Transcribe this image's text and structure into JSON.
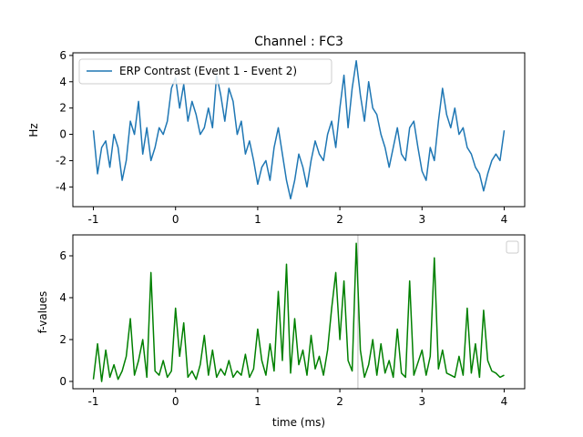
{
  "chart_data": [
    {
      "type": "line",
      "title": "Channel : FC3",
      "xlabel": "",
      "ylabel": "Hz",
      "xlim": [
        -1.25,
        4.25
      ],
      "ylim": [
        -5.5,
        6.2
      ],
      "xticks": [
        "-1",
        "0",
        "1",
        "2",
        "3",
        "4"
      ],
      "yticks": [
        "-4",
        "-2",
        "0",
        "2",
        "4",
        "6"
      ],
      "grid": false,
      "legend": "upper-left",
      "series": [
        {
          "name": "ERP Contrast (Event 1 - Event 2)",
          "color": "#1f77b4",
          "x": [
            -1.0,
            -0.95,
            -0.9,
            -0.85,
            -0.8,
            -0.75,
            -0.7,
            -0.65,
            -0.6,
            -0.55,
            -0.5,
            -0.45,
            -0.4,
            -0.35,
            -0.3,
            -0.25,
            -0.2,
            -0.15,
            -0.1,
            -0.05,
            0.0,
            0.05,
            0.1,
            0.15,
            0.2,
            0.25,
            0.3,
            0.35,
            0.4,
            0.45,
            0.5,
            0.55,
            0.6,
            0.65,
            0.7,
            0.75,
            0.8,
            0.85,
            0.9,
            0.95,
            1.0,
            1.05,
            1.1,
            1.15,
            1.2,
            1.25,
            1.3,
            1.35,
            1.4,
            1.45,
            1.5,
            1.55,
            1.6,
            1.65,
            1.7,
            1.75,
            1.8,
            1.85,
            1.9,
            1.95,
            2.0,
            2.05,
            2.1,
            2.15,
            2.2,
            2.25,
            2.3,
            2.35,
            2.4,
            2.45,
            2.5,
            2.55,
            2.6,
            2.65,
            2.7,
            2.75,
            2.8,
            2.85,
            2.9,
            2.95,
            3.0,
            3.05,
            3.1,
            3.15,
            3.2,
            3.25,
            3.3,
            3.35,
            3.4,
            3.45,
            3.5,
            3.55,
            3.6,
            3.65,
            3.7,
            3.75,
            3.8,
            3.85,
            3.9,
            3.95,
            4.0
          ],
          "y": [
            0.3,
            -3.0,
            -1.0,
            -0.5,
            -2.5,
            0.0,
            -1.0,
            -3.5,
            -2.0,
            1.0,
            0.0,
            2.5,
            -1.5,
            0.5,
            -2.0,
            -1.0,
            0.5,
            0.0,
            1.0,
            3.5,
            4.3,
            2.0,
            3.8,
            1.0,
            2.5,
            1.5,
            0.0,
            0.5,
            2.0,
            0.5,
            4.5,
            3.0,
            1.0,
            3.5,
            2.5,
            0.0,
            1.0,
            -1.5,
            -0.5,
            -2.0,
            -3.8,
            -2.5,
            -2.0,
            -3.5,
            -1.0,
            0.5,
            -1.5,
            -3.5,
            -4.9,
            -3.5,
            -1.5,
            -2.5,
            -4.0,
            -2.0,
            -0.5,
            -1.5,
            -2.0,
            0.0,
            1.0,
            -1.0,
            2.0,
            4.5,
            0.5,
            3.5,
            5.6,
            3.0,
            1.0,
            4.0,
            2.0,
            1.5,
            0.0,
            -1.0,
            -2.5,
            -1.0,
            0.5,
            -1.5,
            -2.0,
            0.5,
            1.0,
            -1.0,
            -2.8,
            -3.5,
            -1.0,
            -2.0,
            1.0,
            3.5,
            1.5,
            0.5,
            2.0,
            0.0,
            0.5,
            -1.0,
            -1.5,
            -2.5,
            -3.0,
            -4.3,
            -3.0,
            -2.0,
            -1.5,
            -2.0,
            0.3
          ]
        }
      ]
    },
    {
      "type": "line",
      "title": "",
      "xlabel": "time (ms)",
      "ylabel": "f-values",
      "xlim": [
        -1.25,
        4.25
      ],
      "ylim": [
        -0.35,
        7.0
      ],
      "xticks": [
        "-1",
        "0",
        "1",
        "2",
        "3",
        "4"
      ],
      "yticks": [
        "0",
        "2",
        "4",
        "6"
      ],
      "grid": false,
      "legend": "upper-right",
      "vline_x": 2.22,
      "series": [
        {
          "color": "#008000",
          "x": [
            -1.0,
            -0.95,
            -0.9,
            -0.85,
            -0.8,
            -0.75,
            -0.7,
            -0.65,
            -0.6,
            -0.55,
            -0.5,
            -0.45,
            -0.4,
            -0.35,
            -0.3,
            -0.25,
            -0.2,
            -0.15,
            -0.1,
            -0.05,
            0.0,
            0.05,
            0.1,
            0.15,
            0.2,
            0.25,
            0.3,
            0.35,
            0.4,
            0.45,
            0.5,
            0.55,
            0.6,
            0.65,
            0.7,
            0.75,
            0.8,
            0.85,
            0.9,
            0.95,
            1.0,
            1.05,
            1.1,
            1.15,
            1.2,
            1.25,
            1.3,
            1.35,
            1.4,
            1.45,
            1.5,
            1.55,
            1.6,
            1.65,
            1.7,
            1.75,
            1.8,
            1.85,
            1.9,
            1.95,
            2.0,
            2.05,
            2.1,
            2.15,
            2.2,
            2.25,
            2.3,
            2.35,
            2.4,
            2.45,
            2.5,
            2.55,
            2.6,
            2.65,
            2.7,
            2.75,
            2.8,
            2.85,
            2.9,
            2.95,
            3.0,
            3.05,
            3.1,
            3.15,
            3.2,
            3.25,
            3.3,
            3.35,
            3.4,
            3.45,
            3.5,
            3.55,
            3.6,
            3.65,
            3.7,
            3.75,
            3.8,
            3.85,
            3.9,
            3.95,
            4.0
          ],
          "y": [
            0.1,
            1.8,
            0.0,
            1.5,
            0.2,
            0.8,
            0.1,
            0.5,
            1.2,
            3.0,
            0.3,
            1.0,
            2.0,
            0.2,
            5.2,
            0.5,
            0.3,
            1.0,
            0.2,
            0.5,
            3.5,
            1.2,
            2.8,
            0.2,
            0.5,
            0.1,
            0.8,
            2.2,
            0.3,
            1.5,
            0.2,
            0.6,
            0.3,
            1.0,
            0.2,
            0.5,
            0.3,
            1.3,
            0.2,
            0.6,
            2.5,
            1.0,
            0.3,
            1.8,
            0.5,
            4.3,
            1.0,
            5.6,
            0.4,
            3.0,
            0.8,
            1.5,
            0.3,
            2.2,
            0.6,
            1.2,
            0.3,
            1.5,
            3.5,
            5.2,
            2.0,
            4.8,
            1.0,
            0.5,
            6.6,
            1.5,
            0.2,
            0.8,
            2.0,
            0.3,
            1.8,
            0.4,
            1.0,
            0.2,
            2.5,
            0.4,
            0.2,
            4.8,
            0.3,
            0.9,
            1.5,
            0.3,
            1.2,
            5.9,
            0.6,
            1.5,
            0.4,
            0.3,
            0.2,
            1.2,
            0.3,
            3.5,
            0.4,
            1.8,
            0.2,
            3.4,
            1.0,
            0.5,
            0.4,
            0.2,
            0.3
          ]
        }
      ]
    }
  ]
}
